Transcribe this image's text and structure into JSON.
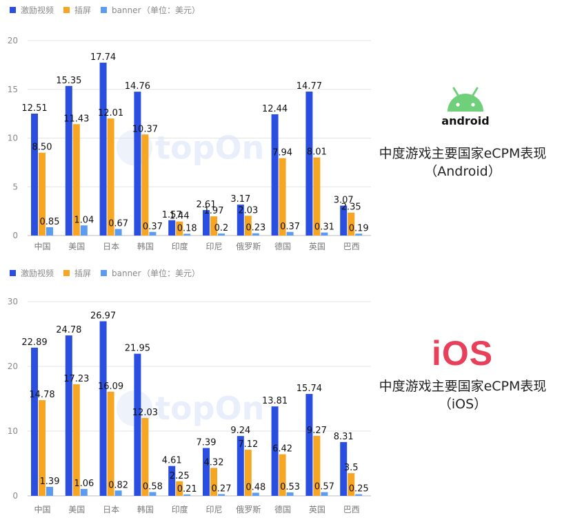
{
  "colors": {
    "rewarded": "#2a4fe0",
    "interstitial": "#f6a623",
    "banner": "#5b9cf0"
  },
  "charts_meta": [
    {
      "brand_logo": "android",
      "brand_label": "android",
      "title_line1": "中度游戏主要国家eCPM表现",
      "title_line2": "（Android）"
    },
    {
      "brand_logo": "iOS",
      "brand_label": "iOS",
      "title_line1": "中度游戏主要国家eCPM表现",
      "title_line2": "（iOS）"
    }
  ],
  "chart_data": [
    {
      "type": "bar",
      "unit_note": "（单位：美元）",
      "categories": [
        "中国",
        "美国",
        "日本",
        "韩国",
        "印度",
        "印尼",
        "俄罗斯",
        "德国",
        "英国",
        "巴西"
      ],
      "series": [
        {
          "name": "激励视频",
          "values": [
            12.51,
            15.35,
            17.74,
            14.76,
            1.57,
            2.61,
            3.17,
            12.44,
            14.77,
            3.07
          ]
        },
        {
          "name": "插屏",
          "values": [
            8.5,
            11.43,
            12.01,
            10.37,
            1.44,
            1.97,
            2.03,
            7.94,
            8.01,
            2.35
          ]
        },
        {
          "name": "banner",
          "values": [
            0.85,
            1.04,
            0.67,
            0.37,
            0.18,
            0.2,
            0.23,
            0.37,
            0.31,
            0.19
          ]
        }
      ],
      "value_labels": [
        [
          "12.51",
          "15.35",
          "17.74",
          "14.76",
          "1.57",
          "2.61",
          "3.17",
          "12.44",
          "14.77",
          "3.07"
        ],
        [
          "8.50",
          "11.43",
          "12.01",
          "10.37",
          "1.44",
          "1.97",
          "2.03",
          "7.94",
          "8.01",
          "2.35"
        ],
        [
          "0.85",
          "1.04",
          "0.67",
          "0.37",
          "0.18",
          "0.2",
          "0.23",
          "0.37",
          "0.31",
          "0.19"
        ]
      ],
      "ylim": [
        0,
        20
      ],
      "yticks": [
        "0",
        "5",
        "10",
        "15",
        "20"
      ],
      "grid": true,
      "legend_position": "top-left",
      "watermark": "topOn"
    },
    {
      "type": "bar",
      "unit_note": "（单位：美元）",
      "categories": [
        "中国",
        "美国",
        "日本",
        "韩国",
        "印度",
        "印尼",
        "俄罗斯",
        "德国",
        "英国",
        "巴西"
      ],
      "series": [
        {
          "name": "激励视频",
          "values": [
            22.89,
            24.78,
            26.97,
            21.95,
            4.61,
            7.39,
            9.24,
            13.81,
            15.74,
            8.31
          ]
        },
        {
          "name": "插屏",
          "values": [
            14.78,
            17.23,
            16.09,
            12.03,
            2.25,
            4.32,
            7.12,
            6.42,
            9.27,
            3.5
          ]
        },
        {
          "name": "banner",
          "values": [
            1.39,
            1.06,
            0.82,
            0.58,
            0.21,
            0.27,
            0.48,
            0.53,
            0.57,
            0.25
          ]
        }
      ],
      "value_labels": [
        [
          "22.89",
          "24.78",
          "26.97",
          "21.95",
          "4.61",
          "7.39",
          "9.24",
          "13.81",
          "15.74",
          "8.31"
        ],
        [
          "14.78",
          "17.23",
          "16.09",
          "12.03",
          "2.25",
          "4.32",
          "7.12",
          "6.42",
          "9.27",
          "3.5"
        ],
        [
          "1.39",
          "1.06",
          "0.82",
          "0.58",
          "0.21",
          "0.27",
          "0.48",
          "0.53",
          "0.57",
          "0.25"
        ]
      ],
      "ylim": [
        0,
        30
      ],
      "yticks": [
        "0",
        "10",
        "20",
        "30"
      ],
      "grid": true,
      "legend_position": "top-left",
      "watermark": "topOn"
    }
  ]
}
